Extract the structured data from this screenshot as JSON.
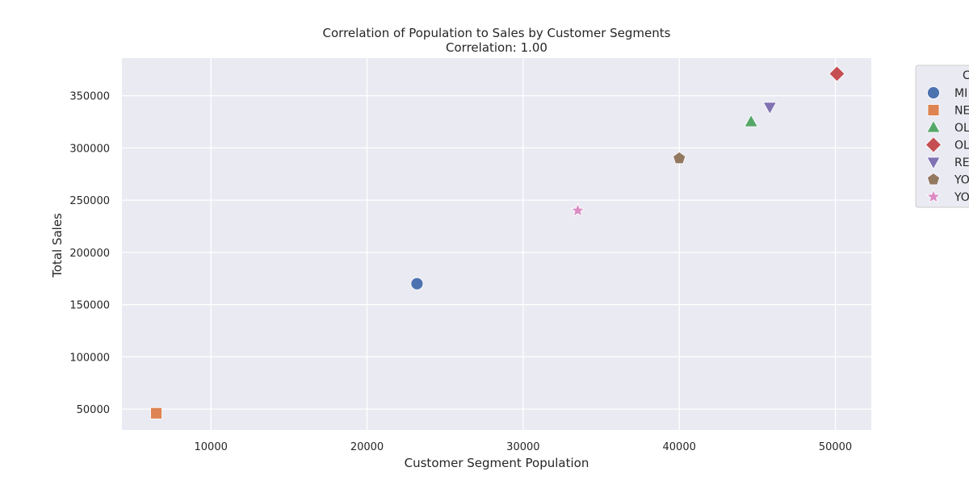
{
  "chart_data": {
    "type": "scatter",
    "title": "Correlation of Population to Sales by Customer Segments",
    "subtitle": "Correlation: 1.00",
    "xlabel": "Customer Segment Population",
    "ylabel": "Total Sales",
    "xlim": [
      4300,
      52300
    ],
    "ylim": [
      30000,
      386000
    ],
    "xticks": [
      10000,
      20000,
      30000,
      40000,
      50000
    ],
    "yticks": [
      50000,
      100000,
      150000,
      200000,
      250000,
      300000,
      350000
    ],
    "xtick_labels": [
      "10000",
      "20000",
      "30000",
      "40000",
      "50000"
    ],
    "ytick_labels": [
      "50000",
      "100000",
      "150000",
      "200000",
      "250000",
      "300000",
      "350000"
    ],
    "grid": true,
    "legend_position": "outside-right",
    "legend_title": "C",
    "background": "#eaeaf2",
    "points": [
      {
        "label": "MI",
        "x": 23200,
        "y": 170000,
        "color": "#4c72b0",
        "marker": "circle"
      },
      {
        "label": "NE",
        "x": 6500,
        "y": 46000,
        "color": "#dd8452",
        "marker": "square"
      },
      {
        "label": "OL",
        "x": 44600,
        "y": 325000,
        "color": "#55a868",
        "marker": "triangle-up"
      },
      {
        "label": "OL",
        "x": 50100,
        "y": 371000,
        "color": "#c44e52",
        "marker": "diamond"
      },
      {
        "label": "RE",
        "x": 45800,
        "y": 339000,
        "color": "#8172b3",
        "marker": "triangle-down"
      },
      {
        "label": "YO",
        "x": 40000,
        "y": 290000,
        "color": "#937860",
        "marker": "pentagon"
      },
      {
        "label": "YO",
        "x": 33500,
        "y": 240000,
        "color": "#da8bc3",
        "marker": "star"
      }
    ]
  }
}
